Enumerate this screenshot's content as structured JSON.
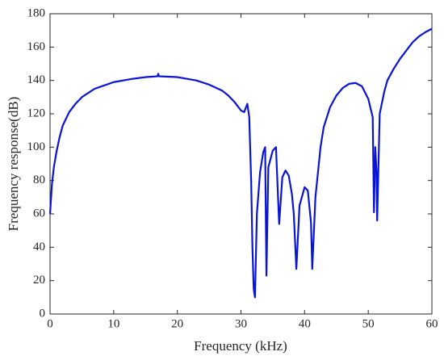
{
  "chart_data": {
    "type": "line",
    "xlabel": "Frequency (kHz)",
    "ylabel": "Frequency response(dB)",
    "x": [
      0,
      0.3,
      0.6,
      1,
      1.5,
      2,
      3,
      4,
      5,
      7,
      10,
      13,
      15,
      16.9,
      17,
      17.1,
      20,
      23,
      25,
      27,
      28,
      29,
      30,
      30.5,
      31,
      31.3,
      31.6,
      31.8,
      32,
      32.2,
      32.5,
      33,
      33.5,
      33.8,
      34,
      34.3,
      35,
      35.5,
      36,
      36.5,
      37,
      37.5,
      38,
      38.3,
      38.7,
      39.2,
      40,
      40.5,
      41,
      41.2,
      41.7,
      42.5,
      43,
      44,
      45,
      46,
      47,
      48,
      49,
      50,
      50.7,
      50.9,
      51.1,
      51.3,
      51.4,
      51.8,
      52.5,
      53,
      54,
      55,
      56,
      57,
      58,
      59,
      60
    ],
    "series": [
      {
        "name": "response",
        "color": "#0a14d2",
        "values": [
          60,
          78,
          88,
          97,
          106,
          113,
          121,
          126,
          130,
          135,
          139,
          141,
          142,
          142.5,
          144,
          142.5,
          142,
          140,
          137.5,
          134,
          131,
          127,
          122,
          121,
          126,
          118,
          80,
          40,
          15,
          10,
          60,
          85,
          97,
          100,
          23,
          88,
          98,
          100,
          54,
          82,
          86,
          83,
          72,
          60,
          27,
          65,
          76,
          74,
          55,
          27,
          70,
          100,
          112,
          124,
          131,
          135.5,
          138,
          138.5,
          136.5,
          129,
          118,
          61,
          100,
          85,
          56,
          120,
          133,
          140,
          147,
          153,
          158,
          163,
          166.5,
          169,
          171
        ]
      }
    ],
    "xlim": [
      0,
      60
    ],
    "ylim": [
      0,
      180
    ],
    "xticks": [
      0,
      10,
      20,
      30,
      40,
      50,
      60
    ],
    "yticks": [
      0,
      20,
      40,
      60,
      80,
      100,
      120,
      140,
      160,
      180
    ]
  }
}
